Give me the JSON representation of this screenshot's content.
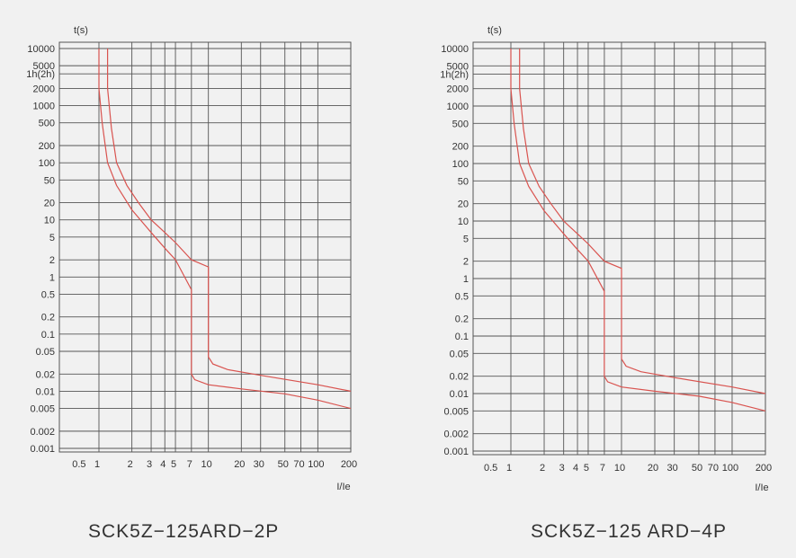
{
  "chart_data": [
    {
      "type": "line",
      "title": "SCK5Z−125ARD−2P",
      "xlabel": "I/Ie",
      "ylabel": "t(s)",
      "y_ticks": [
        "10000",
        "5000",
        "1h(2h)",
        "2000",
        "1000",
        "500",
        "200",
        "100",
        "50",
        "20",
        "10",
        "5",
        "2",
        "1",
        "0.5",
        "0.2",
        "0.1",
        "0.05",
        "0.02",
        "0.01",
        "0.005",
        "0.002",
        "0.001"
      ],
      "x_ticks": [
        "0.5",
        "1",
        "2",
        "3",
        "4",
        "5",
        "7",
        "10",
        "20",
        "30",
        "50",
        "70",
        "100",
        "200"
      ],
      "series": [
        {
          "points": [
            [
              1,
              10000
            ],
            [
              1,
              2000
            ],
            [
              1.07,
              500
            ],
            [
              1.2,
              100
            ],
            [
              1.45,
              40
            ],
            [
              2,
              15
            ],
            [
              3,
              6
            ],
            [
              4,
              3.2
            ],
            [
              5,
              2
            ],
            [
              7,
              0.6
            ],
            [
              7,
              0.02
            ],
            [
              7.5,
              0.016
            ],
            [
              10,
              0.013
            ],
            [
              20,
              0.011
            ],
            [
              50,
              0.009
            ],
            [
              100,
              0.007
            ],
            [
              200,
              0.005
            ]
          ]
        },
        {
          "points": [
            [
              1.2,
              10000
            ],
            [
              1.2,
              2000
            ],
            [
              1.3,
              400
            ],
            [
              1.45,
              100
            ],
            [
              1.8,
              40
            ],
            [
              2.3,
              20
            ],
            [
              3,
              10
            ],
            [
              4,
              6
            ],
            [
              5,
              4
            ],
            [
              7,
              2
            ],
            [
              10,
              1.5
            ],
            [
              10,
              0.04
            ],
            [
              11,
              0.03
            ],
            [
              15,
              0.024
            ],
            [
              30,
              0.019
            ],
            [
              100,
              0.013
            ],
            [
              200,
              0.01
            ]
          ]
        }
      ]
    },
    {
      "type": "line",
      "title": "SCK5Z−125 ARD−4P",
      "xlabel": "I/Ie",
      "ylabel": "t(s)",
      "y_ticks": [
        "10000",
        "5000",
        "1h(2h)",
        "2000",
        "1000",
        "500",
        "200",
        "100",
        "50",
        "20",
        "10",
        "5",
        "2",
        "1",
        "0.5",
        "0.2",
        "0.1",
        "0.05",
        "0.02",
        "0.01",
        "0.005",
        "0.002",
        "0.001"
      ],
      "x_ticks": [
        "0.5",
        "1",
        "2",
        "3",
        "4",
        "5",
        "7",
        "10",
        "20",
        "30",
        "50",
        "70",
        "100",
        "200"
      ],
      "series": [
        {
          "points": [
            [
              1,
              10000
            ],
            [
              1,
              2000
            ],
            [
              1.07,
              500
            ],
            [
              1.2,
              100
            ],
            [
              1.45,
              40
            ],
            [
              2,
              15
            ],
            [
              3,
              6
            ],
            [
              4,
              3.2
            ],
            [
              5,
              2
            ],
            [
              7,
              0.6
            ],
            [
              7,
              0.02
            ],
            [
              7.5,
              0.016
            ],
            [
              10,
              0.013
            ],
            [
              20,
              0.011
            ],
            [
              50,
              0.009
            ],
            [
              100,
              0.007
            ],
            [
              200,
              0.005
            ]
          ]
        },
        {
          "points": [
            [
              1.2,
              10000
            ],
            [
              1.2,
              2000
            ],
            [
              1.3,
              400
            ],
            [
              1.45,
              100
            ],
            [
              1.8,
              40
            ],
            [
              2.3,
              20
            ],
            [
              3,
              10
            ],
            [
              4,
              6
            ],
            [
              5,
              4
            ],
            [
              7,
              2
            ],
            [
              10,
              1.5
            ],
            [
              10,
              0.04
            ],
            [
              11,
              0.03
            ],
            [
              15,
              0.024
            ],
            [
              30,
              0.019
            ],
            [
              100,
              0.013
            ],
            [
              200,
              0.01
            ]
          ]
        }
      ]
    }
  ],
  "colors": {
    "curve": "#d9534f",
    "grid": "#555555",
    "background": "#f1f1f1"
  }
}
